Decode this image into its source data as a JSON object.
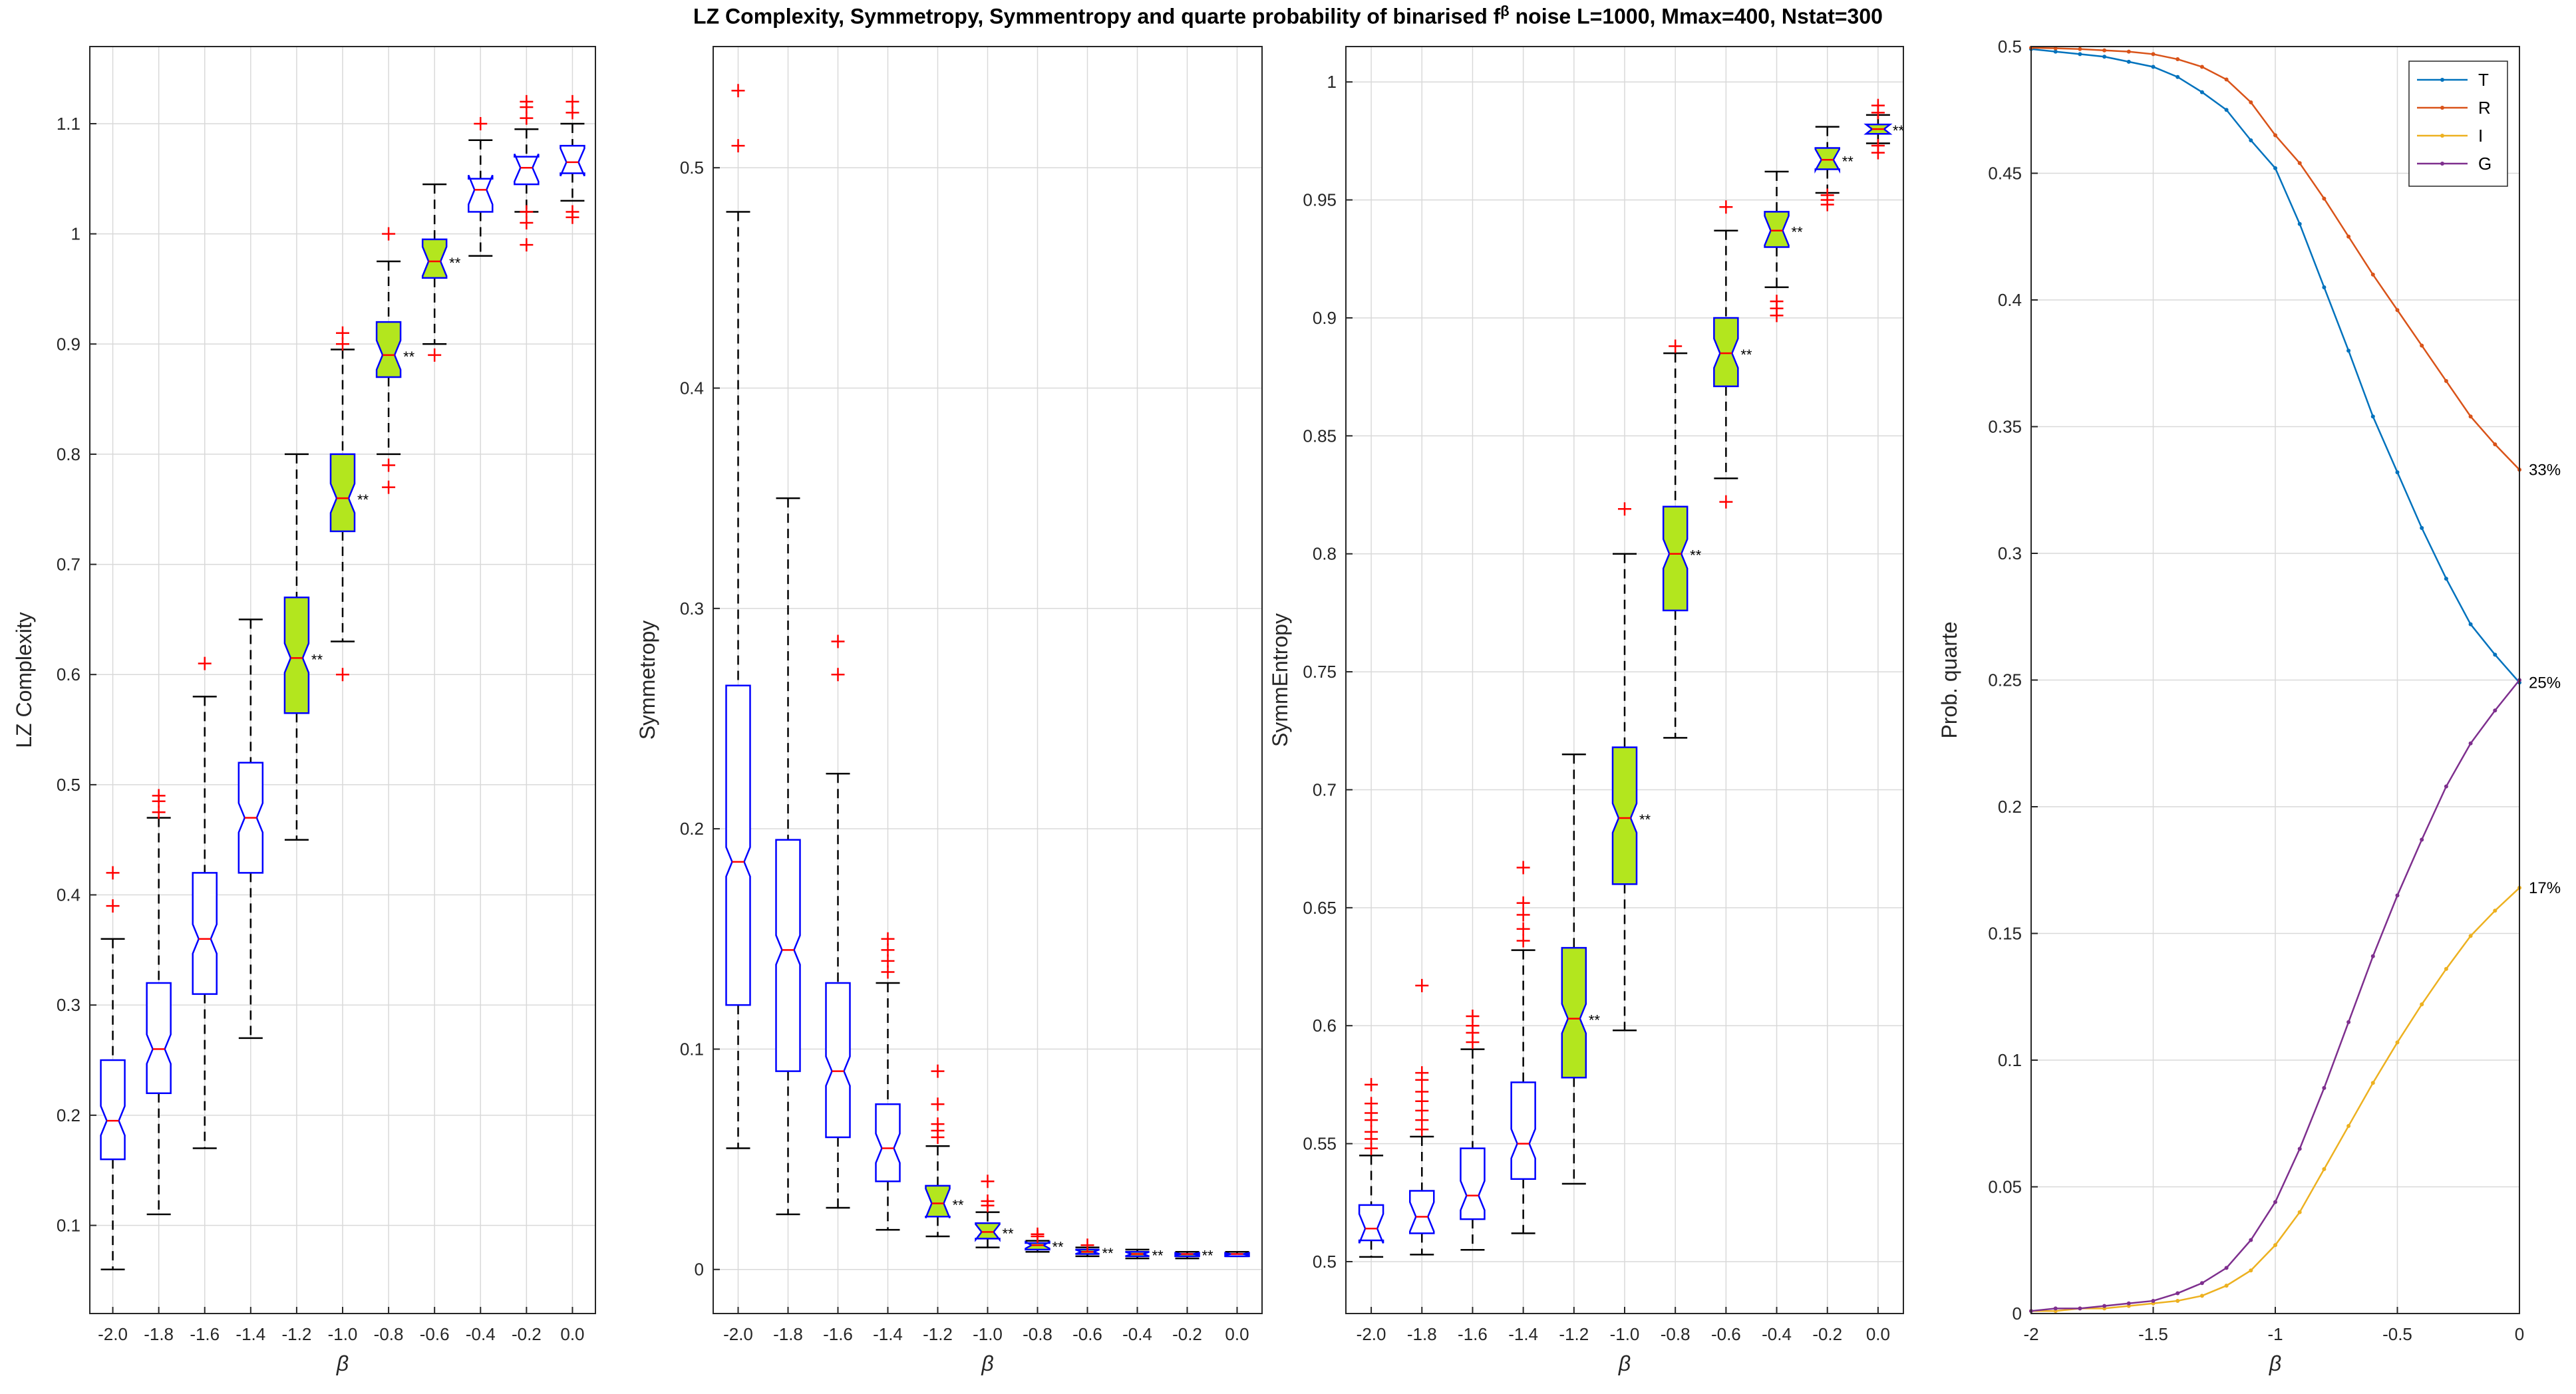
{
  "figure": {
    "title_part1": "LZ Complexity, Symmetropy, Symmentropy and  quarte probability of binarised f",
    "title_sup": "β",
    "title_part2": " noise L=1000, Mmax=400, Nstat=300"
  },
  "colors": {
    "box_edge": "#0000ff",
    "median": "#ff0000",
    "outlier": "#ff0000",
    "whisker": "#000000",
    "highlight_fill": "#b3e61e",
    "grid": "#d9d9d9",
    "T": "#0072bd",
    "R": "#d95319",
    "I": "#edb120",
    "G": "#7e2f8e"
  },
  "chart_data": [
    {
      "type": "boxplot",
      "panel": "lz",
      "title": "",
      "xlabel": "β",
      "ylabel": "LZ Complexity",
      "ylim": [
        0.02,
        1.17
      ],
      "yticks": [
        0.1,
        0.2,
        0.3,
        0.4,
        0.5,
        0.6,
        0.7,
        0.8,
        0.9,
        1,
        1.1
      ],
      "ytick_labels": [
        "0.1",
        "0.2",
        "0.3",
        "0.4",
        "0.5",
        "0.6",
        "0.7",
        "0.8",
        "0.9",
        "1",
        "1.1"
      ],
      "categories": [
        "-2.0",
        "-1.8",
        "-1.6",
        "-1.4",
        "-1.2",
        "-1.0",
        "-0.8",
        "-0.6",
        "-0.4",
        "-0.2",
        "0.0"
      ],
      "boxes": [
        {
          "q1": 0.16,
          "median": 0.195,
          "q3": 0.25,
          "whisker_low": 0.06,
          "whisker_high": 0.36,
          "outliers": [
            0.39,
            0.42
          ],
          "significant": false
        },
        {
          "q1": 0.22,
          "median": 0.26,
          "q3": 0.32,
          "whisker_low": 0.11,
          "whisker_high": 0.47,
          "outliers": [
            0.475,
            0.485,
            0.49
          ],
          "significant": false
        },
        {
          "q1": 0.31,
          "median": 0.36,
          "q3": 0.42,
          "whisker_low": 0.17,
          "whisker_high": 0.58,
          "outliers": [
            0.61
          ],
          "significant": false
        },
        {
          "q1": 0.42,
          "median": 0.47,
          "q3": 0.52,
          "whisker_low": 0.27,
          "whisker_high": 0.65,
          "outliers": [],
          "significant": false
        },
        {
          "q1": 0.565,
          "median": 0.615,
          "q3": 0.67,
          "whisker_low": 0.45,
          "whisker_high": 0.8,
          "outliers": [],
          "significant": true
        },
        {
          "q1": 0.73,
          "median": 0.76,
          "q3": 0.8,
          "whisker_low": 0.63,
          "whisker_high": 0.895,
          "outliers": [
            0.6,
            0.9,
            0.91
          ],
          "significant": true
        },
        {
          "q1": 0.87,
          "median": 0.89,
          "q3": 0.92,
          "whisker_low": 0.8,
          "whisker_high": 0.975,
          "outliers": [
            0.77,
            0.79,
            1.0
          ],
          "significant": true
        },
        {
          "q1": 0.96,
          "median": 0.975,
          "q3": 0.995,
          "whisker_low": 0.9,
          "whisker_high": 1.045,
          "outliers": [
            0.89
          ],
          "significant": true
        },
        {
          "q1": 1.02,
          "median": 1.04,
          "q3": 1.05,
          "whisker_low": 0.98,
          "whisker_high": 1.085,
          "outliers": [
            1.1
          ],
          "significant": false
        },
        {
          "q1": 1.045,
          "median": 1.06,
          "q3": 1.07,
          "whisker_low": 1.02,
          "whisker_high": 1.095,
          "outliers": [
            0.99,
            1.01,
            1.02,
            1.105,
            1.115,
            1.12
          ],
          "significant": false
        },
        {
          "q1": 1.055,
          "median": 1.065,
          "q3": 1.08,
          "whisker_low": 1.03,
          "whisker_high": 1.1,
          "outliers": [
            1.015,
            1.02,
            1.11,
            1.12
          ],
          "significant": false
        }
      ]
    },
    {
      "type": "boxplot",
      "panel": "symmetropy",
      "title": "",
      "xlabel": "β",
      "ylabel": "Symmetropy",
      "ylim": [
        -0.02,
        0.555
      ],
      "yticks": [
        0,
        0.1,
        0.2,
        0.3,
        0.4,
        0.5
      ],
      "ytick_labels": [
        "0",
        "0.1",
        "0.2",
        "0.3",
        "0.4",
        "0.5"
      ],
      "categories": [
        "-2.0",
        "-1.8",
        "-1.6",
        "-1.4",
        "-1.2",
        "-1.0",
        "-0.8",
        "-0.6",
        "-0.4",
        "-0.2",
        "0.0"
      ],
      "boxes": [
        {
          "q1": 0.12,
          "median": 0.185,
          "q3": 0.265,
          "whisker_low": 0.055,
          "whisker_high": 0.48,
          "outliers": [
            0.51,
            0.535
          ],
          "significant": false
        },
        {
          "q1": 0.09,
          "median": 0.145,
          "q3": 0.195,
          "whisker_low": 0.025,
          "whisker_high": 0.35,
          "outliers": [],
          "significant": false
        },
        {
          "q1": 0.06,
          "median": 0.09,
          "q3": 0.13,
          "whisker_low": 0.028,
          "whisker_high": 0.225,
          "outliers": [
            0.27,
            0.285
          ],
          "significant": false
        },
        {
          "q1": 0.04,
          "median": 0.055,
          "q3": 0.075,
          "whisker_low": 0.018,
          "whisker_high": 0.13,
          "outliers": [
            0.135,
            0.14,
            0.145,
            0.15
          ],
          "significant": false
        },
        {
          "q1": 0.024,
          "median": 0.03,
          "q3": 0.038,
          "whisker_low": 0.015,
          "whisker_high": 0.056,
          "outliers": [
            0.06,
            0.063,
            0.066,
            0.075,
            0.09
          ],
          "significant": true
        },
        {
          "q1": 0.014,
          "median": 0.017,
          "q3": 0.021,
          "whisker_low": 0.01,
          "whisker_high": 0.026,
          "outliers": [
            0.029,
            0.031,
            0.04
          ],
          "significant": true
        },
        {
          "q1": 0.009,
          "median": 0.011,
          "q3": 0.012,
          "whisker_low": 0.008,
          "whisker_high": 0.013,
          "outliers": [
            0.015,
            0.016
          ],
          "significant": true
        },
        {
          "q1": 0.007,
          "median": 0.008,
          "q3": 0.009,
          "whisker_low": 0.006,
          "whisker_high": 0.01,
          "outliers": [
            0.011
          ],
          "significant": true
        },
        {
          "q1": 0.006,
          "median": 0.007,
          "q3": 0.008,
          "whisker_low": 0.005,
          "whisker_high": 0.009,
          "outliers": [],
          "significant": true
        },
        {
          "q1": 0.006,
          "median": 0.007,
          "q3": 0.007,
          "whisker_low": 0.005,
          "whisker_high": 0.008,
          "outliers": [],
          "significant": true
        },
        {
          "q1": 0.006,
          "median": 0.007,
          "q3": 0.007,
          "whisker_low": 0.006,
          "whisker_high": 0.008,
          "outliers": [],
          "significant": false
        }
      ]
    },
    {
      "type": "boxplot",
      "panel": "symmentropy",
      "title": "",
      "xlabel": "β",
      "ylabel": "SymmEntropy",
      "ylim": [
        0.478,
        1.015
      ],
      "yticks": [
        0.5,
        0.55,
        0.6,
        0.65,
        0.7,
        0.75,
        0.8,
        0.85,
        0.9,
        0.95,
        1
      ],
      "ytick_labels": [
        "0.5",
        "0.55",
        "0.6",
        "0.65",
        "0.7",
        "0.75",
        "0.8",
        "0.85",
        "0.9",
        "0.95",
        "1"
      ],
      "categories": [
        "-2.0",
        "-1.8",
        "-1.6",
        "-1.4",
        "-1.2",
        "-1.0",
        "-0.8",
        "-0.6",
        "-0.4",
        "-0.2",
        "0.0"
      ],
      "boxes": [
        {
          "q1": 0.509,
          "median": 0.514,
          "q3": 0.524,
          "whisker_low": 0.502,
          "whisker_high": 0.545,
          "outliers": [
            0.548,
            0.552,
            0.555,
            0.56,
            0.563,
            0.567,
            0.575
          ],
          "significant": false
        },
        {
          "q1": 0.512,
          "median": 0.519,
          "q3": 0.53,
          "whisker_low": 0.503,
          "whisker_high": 0.553,
          "outliers": [
            0.556,
            0.56,
            0.564,
            0.568,
            0.572,
            0.577,
            0.58,
            0.617
          ],
          "significant": false
        },
        {
          "q1": 0.518,
          "median": 0.528,
          "q3": 0.548,
          "whisker_low": 0.505,
          "whisker_high": 0.59,
          "outliers": [
            0.593,
            0.597,
            0.6,
            0.604
          ],
          "significant": false
        },
        {
          "q1": 0.535,
          "median": 0.55,
          "q3": 0.576,
          "whisker_low": 0.512,
          "whisker_high": 0.632,
          "outliers": [
            0.636,
            0.641,
            0.647,
            0.652,
            0.667
          ],
          "significant": false
        },
        {
          "q1": 0.578,
          "median": 0.603,
          "q3": 0.633,
          "whisker_low": 0.533,
          "whisker_high": 0.715,
          "outliers": [],
          "significant": true
        },
        {
          "q1": 0.66,
          "median": 0.688,
          "q3": 0.718,
          "whisker_low": 0.598,
          "whisker_high": 0.8,
          "outliers": [
            0.819
          ],
          "significant": true
        },
        {
          "q1": 0.776,
          "median": 0.8,
          "q3": 0.82,
          "whisker_low": 0.722,
          "whisker_high": 0.885,
          "outliers": [
            0.888
          ],
          "significant": true
        },
        {
          "q1": 0.871,
          "median": 0.885,
          "q3": 0.9,
          "whisker_low": 0.832,
          "whisker_high": 0.937,
          "outliers": [
            0.822,
            0.947
          ],
          "significant": true
        },
        {
          "q1": 0.93,
          "median": 0.937,
          "q3": 0.945,
          "whisker_low": 0.913,
          "whisker_high": 0.962,
          "outliers": [
            0.901,
            0.904,
            0.907
          ],
          "significant": true
        },
        {
          "q1": 0.963,
          "median": 0.967,
          "q3": 0.972,
          "whisker_low": 0.953,
          "whisker_high": 0.981,
          "outliers": [
            0.948,
            0.95,
            0.952
          ],
          "significant": true
        },
        {
          "q1": 0.978,
          "median": 0.98,
          "q3": 0.982,
          "whisker_low": 0.974,
          "whisker_high": 0.986,
          "outliers": [
            0.97,
            0.973,
            0.987,
            0.99
          ],
          "significant": true
        }
      ]
    },
    {
      "type": "line",
      "panel": "quarte",
      "title": "",
      "xlabel": "β",
      "ylabel": "Prob. quarte",
      "xlim": [
        -2,
        0
      ],
      "ylim": [
        0,
        0.5
      ],
      "xticks": [
        -2,
        -1.5,
        -1,
        -0.5,
        0
      ],
      "xtick_labels": [
        "-2",
        "-1.5",
        "-1",
        "-0.5",
        "0"
      ],
      "yticks": [
        0,
        0.05,
        0.1,
        0.15,
        0.2,
        0.25,
        0.3,
        0.35,
        0.4,
        0.45,
        0.5
      ],
      "ytick_labels": [
        "0",
        "0.05",
        "0.1",
        "0.15",
        "0.2",
        "0.25",
        "0.3",
        "0.35",
        "0.4",
        "0.45",
        "0.5"
      ],
      "x": [
        -2,
        -1.9,
        -1.8,
        -1.7,
        -1.6,
        -1.5,
        -1.4,
        -1.3,
        -1.2,
        -1.1,
        -1.0,
        -0.9,
        -0.8,
        -0.7,
        -0.6,
        -0.5,
        -0.4,
        -0.3,
        -0.2,
        -0.1,
        0
      ],
      "series": [
        {
          "name": "T",
          "values": [
            0.499,
            0.498,
            0.497,
            0.496,
            0.494,
            0.492,
            0.488,
            0.482,
            0.475,
            0.463,
            0.452,
            0.43,
            0.405,
            0.38,
            0.354,
            0.332,
            0.31,
            0.29,
            0.272,
            0.26,
            0.249
          ]
        },
        {
          "name": "R",
          "values": [
            0.4995,
            0.4993,
            0.499,
            0.4985,
            0.498,
            0.497,
            0.495,
            0.492,
            0.487,
            0.478,
            0.465,
            0.454,
            0.44,
            0.425,
            0.41,
            0.396,
            0.382,
            0.368,
            0.354,
            0.343,
            0.333
          ]
        },
        {
          "name": "I",
          "values": [
            0.001,
            0.001,
            0.002,
            0.002,
            0.003,
            0.004,
            0.005,
            0.007,
            0.011,
            0.017,
            0.027,
            0.04,
            0.057,
            0.074,
            0.091,
            0.107,
            0.122,
            0.136,
            0.149,
            0.159,
            0.168
          ]
        },
        {
          "name": "G",
          "values": [
            0.001,
            0.002,
            0.002,
            0.003,
            0.004,
            0.005,
            0.008,
            0.012,
            0.018,
            0.029,
            0.044,
            0.065,
            0.089,
            0.115,
            0.141,
            0.165,
            0.187,
            0.208,
            0.225,
            0.238,
            0.25
          ]
        }
      ],
      "end_labels": [
        {
          "series": "R",
          "text": "33%"
        },
        {
          "series": "T",
          "text": "25%"
        },
        {
          "series": "I",
          "text": "17%"
        }
      ],
      "legend": {
        "position": "top-right",
        "entries": [
          "T",
          "R",
          "I",
          "G"
        ]
      }
    }
  ],
  "significance_marker": "**"
}
